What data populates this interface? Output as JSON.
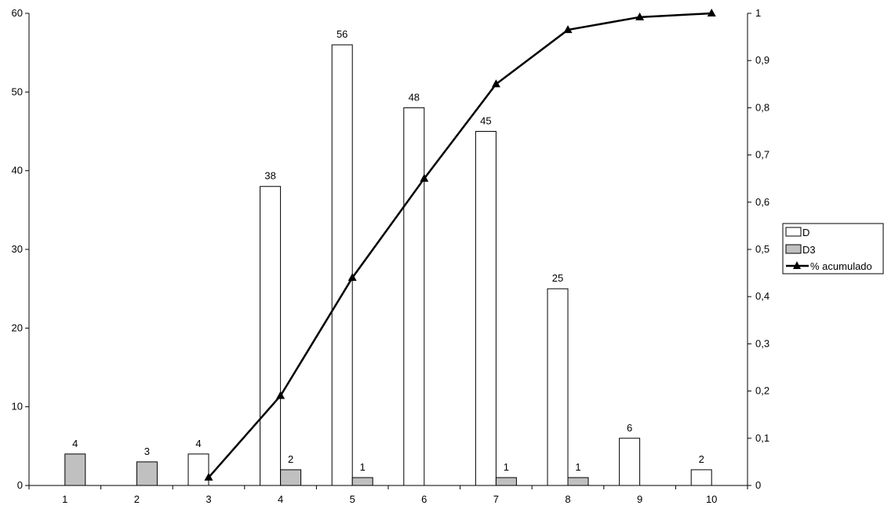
{
  "chart_data": {
    "type": "bar",
    "categories": [
      "1",
      "2",
      "3",
      "4",
      "5",
      "6",
      "7",
      "8",
      "9",
      "10"
    ],
    "series": [
      {
        "name": "D",
        "type": "bar",
        "axis": "left",
        "color": "#ffffff",
        "values": [
          null,
          null,
          4,
          38,
          56,
          48,
          45,
          25,
          6,
          2
        ]
      },
      {
        "name": "D3",
        "type": "bar",
        "axis": "left",
        "color": "#c0c0c0",
        "values": [
          4,
          3,
          null,
          2,
          1,
          null,
          1,
          1,
          null,
          null
        ]
      },
      {
        "name": "% acumulado",
        "type": "line",
        "axis": "right",
        "color": "#000000",
        "marker": "triangle",
        "values": [
          null,
          null,
          0.017,
          0.19,
          0.44,
          0.65,
          0.85,
          0.965,
          0.992,
          1.0
        ]
      }
    ],
    "y_left": {
      "min": 0,
      "max": 60,
      "ticks": [
        "0",
        "10",
        "20",
        "30",
        "40",
        "50",
        "60"
      ]
    },
    "y_right": {
      "min": 0,
      "max": 1,
      "ticks": [
        "0",
        "0,1",
        "0,2",
        "0,3",
        "0,4",
        "0,5",
        "0,6",
        "0,7",
        "0,8",
        "0,9",
        "1"
      ]
    },
    "data_labels": {
      "D": [
        "",
        "",
        "4",
        "38",
        "56",
        "48",
        "45",
        "25",
        "6",
        "2"
      ],
      "D3": [
        "4",
        "3",
        "",
        "2",
        "1",
        "",
        "1",
        "1",
        "",
        ""
      ]
    },
    "legend": {
      "position": "right",
      "entries": [
        "D",
        "D3",
        "% acumulado"
      ]
    },
    "grid": false
  }
}
